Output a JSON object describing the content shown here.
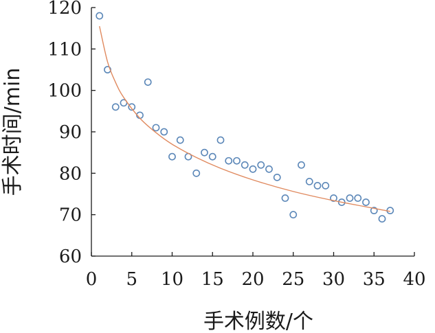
{
  "chart_data": {
    "type": "scatter",
    "title": "",
    "xlabel": "手术例数/个",
    "ylabel": "手术时间/min",
    "xlim": [
      0,
      40
    ],
    "ylim": [
      60,
      120
    ],
    "xticks": [
      0,
      5,
      10,
      15,
      20,
      25,
      30,
      35,
      40
    ],
    "yticks": [
      60,
      70,
      80,
      90,
      100,
      110,
      120
    ],
    "grid": false,
    "legend": "none",
    "points": {
      "x": [
        1,
        2,
        3,
        4,
        5,
        6,
        7,
        8,
        9,
        10,
        11,
        12,
        13,
        14,
        15,
        16,
        17,
        18,
        19,
        20,
        21,
        22,
        23,
        24,
        25,
        26,
        27,
        28,
        29,
        30,
        31,
        32,
        33,
        34,
        35,
        36,
        37
      ],
      "y": [
        118,
        105,
        96,
        97,
        96,
        94,
        102,
        91,
        90,
        84,
        88,
        84,
        80,
        85,
        84,
        88,
        83,
        83,
        82,
        81,
        82,
        81,
        79,
        74,
        70,
        82,
        78,
        77,
        77,
        74,
        73,
        74,
        74,
        73,
        71,
        69,
        71
      ]
    },
    "trendline": {
      "type": "logarithmic",
      "x": [
        1,
        2,
        3,
        4,
        6,
        8,
        10,
        13,
        16,
        20,
        25,
        30,
        37
      ],
      "y": [
        115.5,
        106.9,
        101.9,
        98.3,
        93.3,
        89.8,
        87.0,
        83.8,
        81.2,
        78.4,
        75.6,
        73.4,
        70.8
      ]
    },
    "colors": {
      "point_stroke": "#5b87b8",
      "trendline": "#e08a5f",
      "axis": "#1a1a1a"
    }
  }
}
